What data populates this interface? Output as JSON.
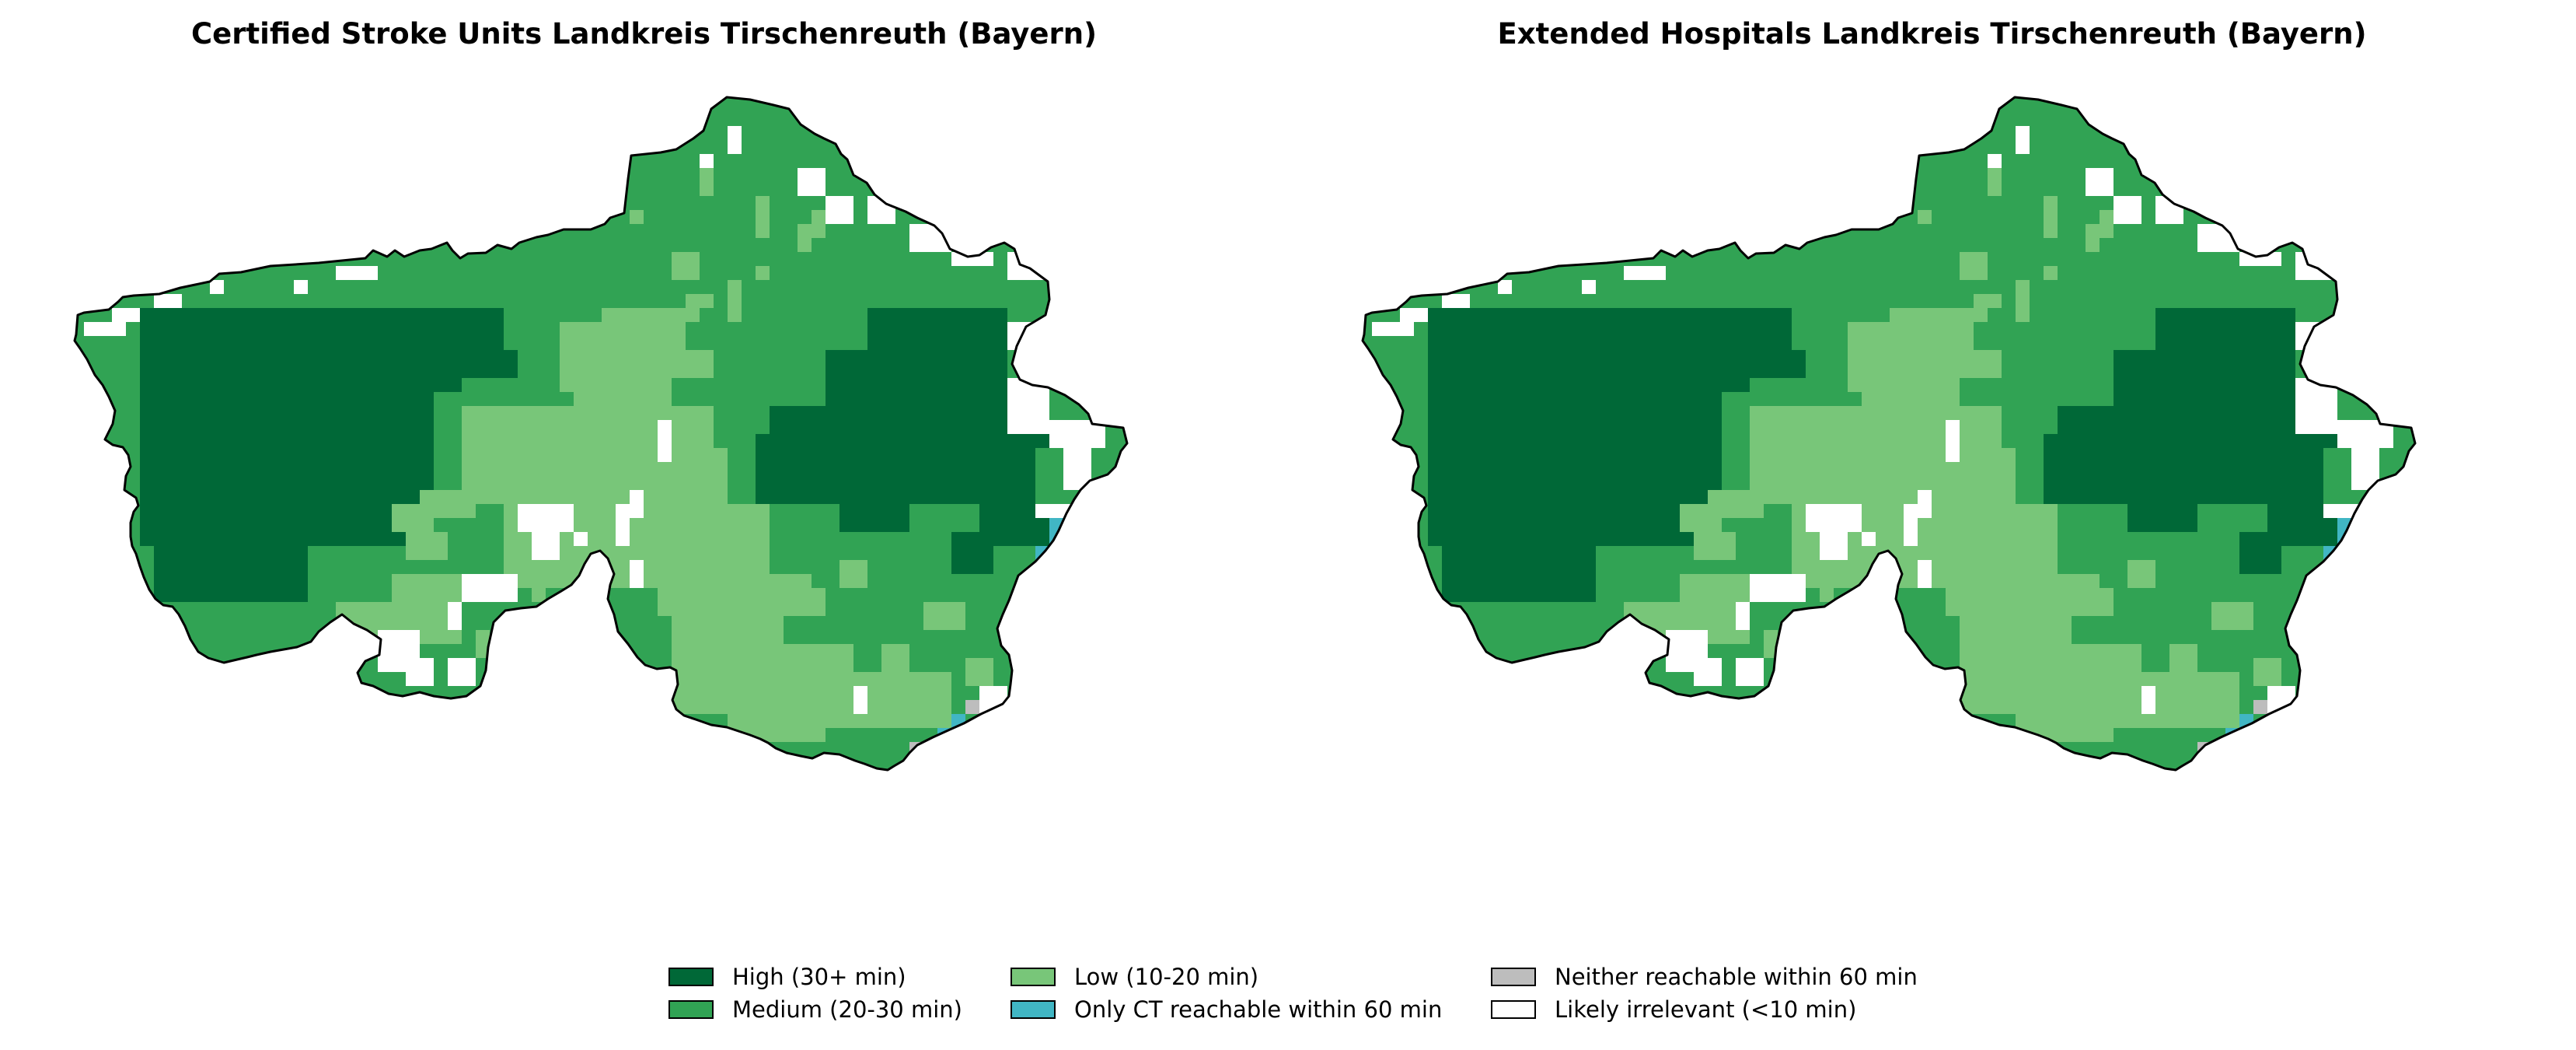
{
  "panels": [
    {
      "title": "Certified Stroke Units Landkreis Tirschenreuth (Bayern)"
    },
    {
      "title": "Extended Hospitals Landkreis Tirschenreuth (Bayern)"
    }
  ],
  "legend": [
    {
      "label": "High (30+ min)",
      "color": "#006837"
    },
    {
      "label": "Medium (20-30 min)",
      "color": "#31a354"
    },
    {
      "label": "Low (10-20 min)",
      "color": "#78c679"
    },
    {
      "label": "Only CT reachable within 60 min",
      "color": "#41b6c4"
    },
    {
      "label": "Neither reachable within 60 min",
      "color": "#bdbdbd"
    },
    {
      "label": "Likely irrelevant (<10 min)",
      "color": "#ffffff"
    }
  ]
}
